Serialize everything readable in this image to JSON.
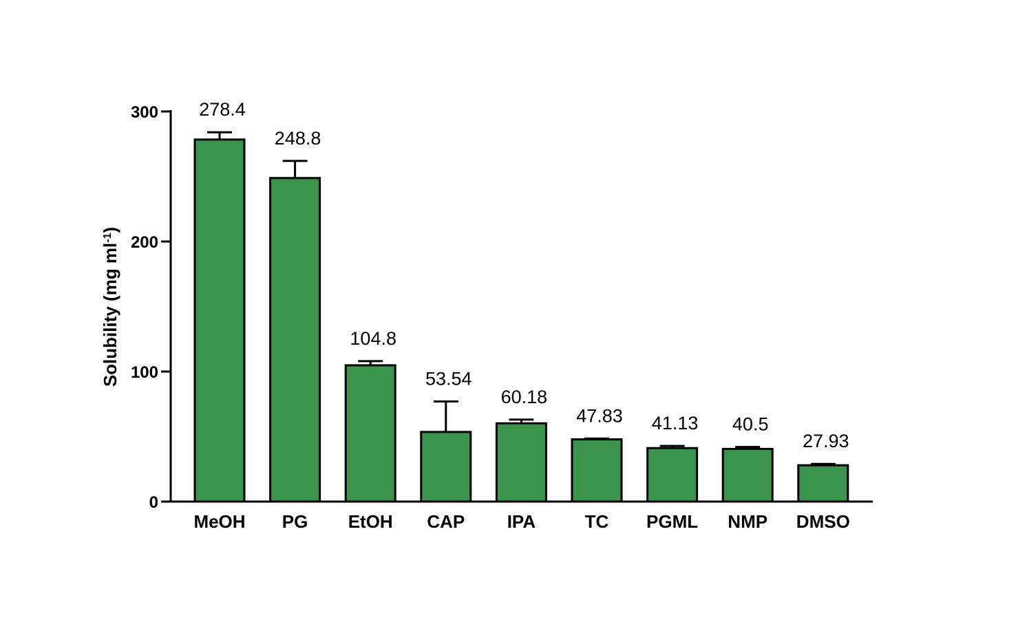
{
  "chart_data": {
    "type": "bar",
    "title": "",
    "xlabel": "",
    "ylabel_main": "Solubility (mg ml",
    "ylabel_sup": "-1",
    "ylabel_end": ")",
    "ylim": [
      0,
      300
    ],
    "yticks": [
      0,
      100,
      200,
      300
    ],
    "grid": false,
    "legend": "none",
    "bar_color": "#3a944b",
    "categories": [
      "MeOH",
      "PG",
      "EtOH",
      "CAP",
      "IPA",
      "TC",
      "PGML",
      "NMP",
      "DMSO"
    ],
    "values": [
      278.4,
      248.8,
      104.8,
      53.54,
      60.18,
      47.83,
      41.13,
      40.5,
      27.93
    ],
    "error_upper": [
      284,
      262,
      108,
      77,
      63,
      48.5,
      42.8,
      42,
      29
    ],
    "data_labels": [
      "278.4",
      "248.8",
      "104.8",
      "53.54",
      "60.18",
      "47.83",
      "41.13",
      "40.5",
      "27.93"
    ]
  }
}
